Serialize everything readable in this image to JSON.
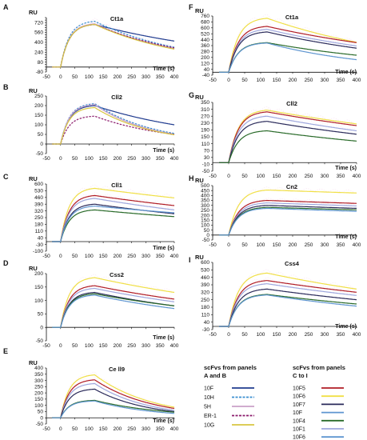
{
  "series_colors": {
    "10F": "#1f3c8f",
    "10H": "#3a8fd0",
    "5H": "#c9a0c8",
    "ER-1": "#8b1a6b",
    "10G": "#d8c640",
    "10F5": "#b01d25",
    "10F6": "#f0e046",
    "10F7": "#2a2a5a",
    "10F4": "#2a6b2a",
    "10F1": "#9ea7dd",
    "10F6b": "#5e95d0"
  },
  "x_axis_label": "Time (s)",
  "y_axis_unit": "RU",
  "legend": {
    "group1_title_line1": "scFvs from panels",
    "group1_title_line2": "A and B",
    "group2_title_line1": "scFvs from panels",
    "group2_title_line2": "C to I",
    "group1": [
      {
        "label": "10F",
        "color": "#1f3c8f",
        "dash": false
      },
      {
        "label": "10H",
        "color": "#3a8fd0",
        "dash": true
      },
      {
        "label": "5H",
        "color": "#c9a0c8",
        "dash": false
      },
      {
        "label": "ER-1",
        "color": "#8b1a6b",
        "dash": true
      },
      {
        "label": "10G",
        "color": "#d8c640",
        "dash": false
      }
    ],
    "group2": [
      {
        "label": "10F5",
        "color": "#b01d25",
        "dash": false
      },
      {
        "label": "10F6",
        "color": "#f0e046",
        "dash": false
      },
      {
        "label": "10F7",
        "color": "#2a2a5a",
        "dash": false
      },
      {
        "label": "10F",
        "color": "#5e95d0",
        "dash": false
      },
      {
        "label": "10F4",
        "color": "#2a6b2a",
        "dash": false
      },
      {
        "label": "10F1",
        "color": "#9ea7dd",
        "dash": false
      },
      {
        "label": "10F6",
        "color": "#5e95d0",
        "dash": false
      }
    ]
  },
  "chart_data": [
    {
      "type": "line",
      "panel": "A",
      "title": "Ct1a",
      "ylabel": "RU",
      "xlabel": "Time (s)",
      "xlim": [
        -50,
        400
      ],
      "ylim": [
        -80,
        800
      ],
      "x_ticks": [
        -50,
        0,
        50,
        100,
        150,
        200,
        250,
        300,
        350,
        400
      ],
      "y_ticks": [
        -80,
        -40,
        0,
        40,
        80,
        120,
        160,
        200,
        240,
        280,
        320,
        360,
        400,
        440,
        480,
        520,
        560,
        600,
        640,
        680,
        720,
        760,
        800
      ],
      "y_tick_labels": [
        "-80",
        "",
        "",
        "",
        "80",
        "",
        "",
        "",
        "240",
        "",
        "",
        "",
        "400",
        "",
        "",
        "",
        "560",
        "",
        "",
        "",
        "720",
        "",
        ""
      ],
      "series": [
        {
          "name": "10F",
          "peak": 690,
          "end": 420,
          "plateau_ratio": 0.86,
          "dash": false
        },
        {
          "name": "10H",
          "peak": 740,
          "end": 320,
          "plateau_ratio": 0.86,
          "dash": true
        },
        {
          "name": "5H",
          "peak": 700,
          "end": 300,
          "plateau_ratio": 0.86,
          "dash": false
        },
        {
          "name": "ER-1",
          "peak": 690,
          "end": 310,
          "plateau_ratio": 0.86,
          "dash": true
        },
        {
          "name": "10G",
          "peak": 690,
          "end": 290,
          "plateau_ratio": 0.86,
          "dash": false
        }
      ]
    },
    {
      "type": "line",
      "panel": "B",
      "title": "Cll2",
      "ylabel": "RU",
      "xlabel": "Time (s)",
      "xlim": [
        -50,
        400
      ],
      "ylim": [
        -50,
        250
      ],
      "x_ticks": [
        -50,
        0,
        50,
        100,
        150,
        200,
        250,
        300,
        350,
        400
      ],
      "y_ticks": [
        -50,
        0,
        50,
        100,
        150,
        200,
        250
      ],
      "y_tick_labels": [
        "-50",
        "0",
        "50",
        "100",
        "150",
        "200",
        "250"
      ],
      "series": [
        {
          "name": "10F",
          "peak": 200,
          "end": 100,
          "plateau_ratio": 0.95,
          "dash": false
        },
        {
          "name": "10H",
          "peak": 210,
          "end": 55,
          "plateau_ratio": 0.95,
          "dash": true
        },
        {
          "name": "5H",
          "peak": 205,
          "end": 50,
          "plateau_ratio": 0.95,
          "dash": false
        },
        {
          "name": "ER-1",
          "peak": 145,
          "end": 50,
          "plateau_ratio": 0.7,
          "dash": true
        },
        {
          "name": "10G",
          "peak": 190,
          "end": 48,
          "plateau_ratio": 0.95,
          "dash": false
        }
      ]
    },
    {
      "type": "line",
      "panel": "C",
      "title": "Cll1",
      "ylabel": "RU",
      "xlabel": "Time (s)",
      "xlim": [
        -50,
        400
      ],
      "ylim": [
        -100,
        600
      ],
      "x_ticks": [
        -50,
        0,
        50,
        100,
        150,
        200,
        250,
        300,
        350,
        400
      ],
      "y_ticks": [
        -100,
        -30,
        40,
        110,
        180,
        250,
        320,
        390,
        460,
        530,
        600
      ],
      "y_tick_labels": [
        "-100",
        "-30",
        "40",
        "110",
        "180",
        "250",
        "320",
        "390",
        "460",
        "530",
        "600"
      ],
      "series": [
        {
          "name": "10F6",
          "peak": 555,
          "end": 455,
          "plateau_ratio": 0.82,
          "dash": false
        },
        {
          "name": "10F5",
          "peak": 480,
          "end": 375,
          "plateau_ratio": 0.85,
          "dash": false
        },
        {
          "name": "10F1",
          "peak": 450,
          "end": 330,
          "plateau_ratio": 0.85,
          "dash": false
        },
        {
          "name": "10F7",
          "peak": 390,
          "end": 290,
          "plateau_ratio": 0.85,
          "dash": false
        },
        {
          "name": "10F4",
          "peak": 330,
          "end": 260,
          "plateau_ratio": 0.85,
          "dash": false
        },
        {
          "name": "10F",
          "peak": 370,
          "end": 300,
          "plateau_ratio": 0.85,
          "dash": false
        }
      ]
    },
    {
      "type": "line",
      "panel": "D",
      "title": "Css2",
      "ylabel": "RU",
      "xlabel": "Time (s)",
      "xlim": [
        -50,
        400
      ],
      "ylim": [
        -50,
        200
      ],
      "x_ticks": [
        -50,
        0,
        50,
        100,
        150,
        200,
        250,
        300,
        350,
        400
      ],
      "y_ticks": [
        -50,
        0,
        50,
        100,
        150,
        200
      ],
      "y_tick_labels": [
        "-50",
        "0",
        "50",
        "100",
        "150",
        "200"
      ],
      "series": [
        {
          "name": "10F6",
          "peak": 185,
          "end": 130,
          "plateau_ratio": 0.82,
          "dash": false
        },
        {
          "name": "10F5",
          "peak": 155,
          "end": 105,
          "plateau_ratio": 0.85,
          "dash": false
        },
        {
          "name": "10F1",
          "peak": 145,
          "end": 95,
          "plateau_ratio": 0.85,
          "dash": false
        },
        {
          "name": "10F7",
          "peak": 130,
          "end": 80,
          "plateau_ratio": 0.85,
          "dash": false
        },
        {
          "name": "10F4",
          "peak": 125,
          "end": 80,
          "plateau_ratio": 0.85,
          "dash": false
        },
        {
          "name": "10F",
          "peak": 120,
          "end": 70,
          "plateau_ratio": 0.85,
          "dash": false
        }
      ]
    },
    {
      "type": "line",
      "panel": "E",
      "title": "Ce ll9",
      "ylabel": "RU",
      "xlabel": "Time (s)",
      "xlim": [
        -50,
        400
      ],
      "ylim": [
        -50,
        400
      ],
      "x_ticks": [
        -50,
        0,
        50,
        100,
        150,
        200,
        250,
        300,
        350,
        400
      ],
      "y_ticks": [
        -50,
        0,
        50,
        100,
        150,
        200,
        250,
        300,
        350,
        400
      ],
      "y_tick_labels": [
        "-50",
        "0",
        "50",
        "100",
        "150",
        "200",
        "250",
        "300",
        "350",
        "400"
      ],
      "series": [
        {
          "name": "10F6",
          "peak": 345,
          "end": 85,
          "plateau_ratio": 0.85,
          "dash": false
        },
        {
          "name": "10F5",
          "peak": 305,
          "end": 75,
          "plateau_ratio": 0.85,
          "dash": false
        },
        {
          "name": "10F1",
          "peak": 275,
          "end": 60,
          "plateau_ratio": 0.85,
          "dash": false
        },
        {
          "name": "10F7",
          "peak": 230,
          "end": 50,
          "plateau_ratio": 0.85,
          "dash": false
        },
        {
          "name": "10F4",
          "peak": 140,
          "end": 45,
          "plateau_ratio": 0.9,
          "dash": false
        },
        {
          "name": "10F",
          "peak": 135,
          "end": 35,
          "plateau_ratio": 0.9,
          "dash": false
        }
      ]
    },
    {
      "type": "line",
      "panel": "F",
      "title": "Ct1a",
      "ylabel": "RU",
      "xlabel": "Time (s)",
      "xlim": [
        -50,
        400
      ],
      "ylim": [
        -40,
        760
      ],
      "x_ticks": [
        -50,
        0,
        50,
        100,
        150,
        200,
        250,
        300,
        350,
        400
      ],
      "y_ticks": [
        -40,
        40,
        120,
        200,
        280,
        360,
        440,
        520,
        600,
        680,
        760
      ],
      "y_tick_labels": [
        "-40",
        "40",
        "120",
        "200",
        "280",
        "360",
        "440",
        "520",
        "600",
        "680",
        "760"
      ],
      "series": [
        {
          "name": "10F6",
          "peak": 730,
          "end": 405,
          "plateau_ratio": 0.85,
          "dash": false
        },
        {
          "name": "10F5",
          "peak": 620,
          "end": 400,
          "plateau_ratio": 0.85,
          "dash": false
        },
        {
          "name": "10F1",
          "peak": 580,
          "end": 355,
          "plateau_ratio": 0.85,
          "dash": false
        },
        {
          "name": "10F7",
          "peak": 545,
          "end": 325,
          "plateau_ratio": 0.85,
          "dash": false
        },
        {
          "name": "10F4",
          "peak": 400,
          "end": 230,
          "plateau_ratio": 0.88,
          "dash": false
        },
        {
          "name": "10F",
          "peak": 395,
          "end": 170,
          "plateau_ratio": 0.88,
          "dash": false
        }
      ]
    },
    {
      "type": "line",
      "panel": "G",
      "title": "Cll2",
      "ylabel": "RU",
      "xlabel": "Time (s)",
      "xlim": [
        -50,
        400
      ],
      "ylim": [
        -50,
        350
      ],
      "x_ticks": [
        -50,
        0,
        50,
        100,
        150,
        200,
        250,
        300,
        350,
        400
      ],
      "y_ticks": [
        -50,
        -10,
        30,
        70,
        110,
        150,
        190,
        230,
        270,
        310,
        350
      ],
      "y_tick_labels": [
        "-50",
        "-10",
        "30",
        "70",
        "110",
        "150",
        "190",
        "230",
        "270",
        "310",
        "350"
      ],
      "series": [
        {
          "name": "10F6",
          "peak": 305,
          "end": 225,
          "plateau_ratio": 0.85,
          "dash": false
        },
        {
          "name": "10F5",
          "peak": 295,
          "end": 215,
          "plateau_ratio": 0.85,
          "dash": false
        },
        {
          "name": "10F1",
          "peak": 270,
          "end": 185,
          "plateau_ratio": 0.85,
          "dash": false
        },
        {
          "name": "10F7",
          "peak": 240,
          "end": 165,
          "plateau_ratio": 0.85,
          "dash": false
        },
        {
          "name": "10F4",
          "peak": 185,
          "end": 125,
          "plateau_ratio": 0.88,
          "dash": false
        }
      ]
    },
    {
      "type": "line",
      "panel": "H",
      "title": "Cn2",
      "ylabel": "RU",
      "xlabel": "Time (s)",
      "xlim": [
        -50,
        400
      ],
      "ylim": [
        -50,
        500
      ],
      "x_ticks": [
        -50,
        0,
        50,
        100,
        150,
        200,
        250,
        300,
        350,
        400
      ],
      "y_ticks": [
        -50,
        0,
        50,
        100,
        150,
        200,
        250,
        300,
        350,
        400,
        450,
        500
      ],
      "y_tick_labels": [
        "-50",
        "0",
        "50",
        "100",
        "150",
        "200",
        "250",
        "300",
        "350",
        "400",
        "450",
        "500"
      ],
      "series": [
        {
          "name": "10F6",
          "peak": 455,
          "end": 425,
          "plateau_ratio": 0.85,
          "dash": false
        },
        {
          "name": "10F5",
          "peak": 350,
          "end": 320,
          "plateau_ratio": 0.85,
          "dash": false
        },
        {
          "name": "10F1",
          "peak": 325,
          "end": 295,
          "plateau_ratio": 0.85,
          "dash": false
        },
        {
          "name": "10F7",
          "peak": 300,
          "end": 270,
          "plateau_ratio": 0.85,
          "dash": false
        },
        {
          "name": "10F4",
          "peak": 280,
          "end": 255,
          "plateau_ratio": 0.85,
          "dash": false
        },
        {
          "name": "10F",
          "peak": 270,
          "end": 240,
          "plateau_ratio": 0.85,
          "dash": false
        }
      ]
    },
    {
      "type": "line",
      "panel": "I",
      "title": "Css4",
      "ylabel": "RU",
      "xlabel": "Time (s)",
      "xlim": [
        -50,
        400
      ],
      "ylim": [
        -30,
        600
      ],
      "x_ticks": [
        -50,
        0,
        50,
        100,
        150,
        200,
        250,
        300,
        350,
        400
      ],
      "y_ticks": [
        -30,
        40,
        110,
        180,
        250,
        320,
        390,
        460,
        530,
        600
      ],
      "y_tick_labels": [
        "-30",
        "40",
        "110",
        "180",
        "250",
        "320",
        "390",
        "460",
        "530",
        "600"
      ],
      "series": [
        {
          "name": "10F6",
          "peak": 500,
          "end": 350,
          "plateau_ratio": 0.82,
          "dash": false
        },
        {
          "name": "10F5",
          "peak": 430,
          "end": 320,
          "plateau_ratio": 0.85,
          "dash": false
        },
        {
          "name": "10F1",
          "peak": 400,
          "end": 290,
          "plateau_ratio": 0.85,
          "dash": false
        },
        {
          "name": "10F7",
          "peak": 350,
          "end": 250,
          "plateau_ratio": 0.85,
          "dash": false
        },
        {
          "name": "10F4",
          "peak": 300,
          "end": 210,
          "plateau_ratio": 0.88,
          "dash": false
        },
        {
          "name": "10F",
          "peak": 295,
          "end": 190,
          "plateau_ratio": 0.88,
          "dash": false
        }
      ]
    }
  ]
}
